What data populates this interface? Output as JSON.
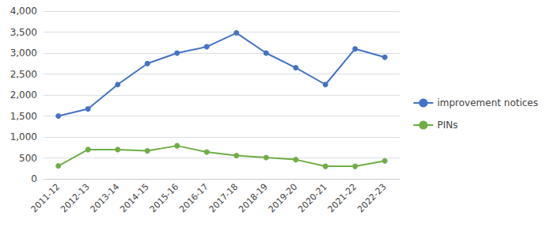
{
  "chart_data": {
    "type": "line",
    "categories": [
      "2011-12",
      "2012-13",
      "2013-14",
      "2014-15",
      "2015-16",
      "2016-17",
      "2017-18",
      "2018-19",
      "2019-20",
      "2020-21",
      "2021-22",
      "2022-23"
    ],
    "series": [
      {
        "name": "improvement notices",
        "color": "#4472C4",
        "values": [
          1500,
          1670,
          2250,
          2750,
          3000,
          3150,
          3480,
          3000,
          2650,
          2250,
          3100,
          2900
        ]
      },
      {
        "name": "PINs",
        "color": "#70AD47",
        "values": [
          310,
          700,
          700,
          670,
          790,
          640,
          555,
          510,
          460,
          300,
          300,
          430
        ]
      }
    ],
    "marker": "circle",
    "ylim": [
      0,
      4000
    ],
    "yticks": [
      0,
      500,
      1000,
      1500,
      2000,
      2500,
      3000,
      3500,
      4000
    ],
    "grid": true,
    "legend": "right"
  }
}
